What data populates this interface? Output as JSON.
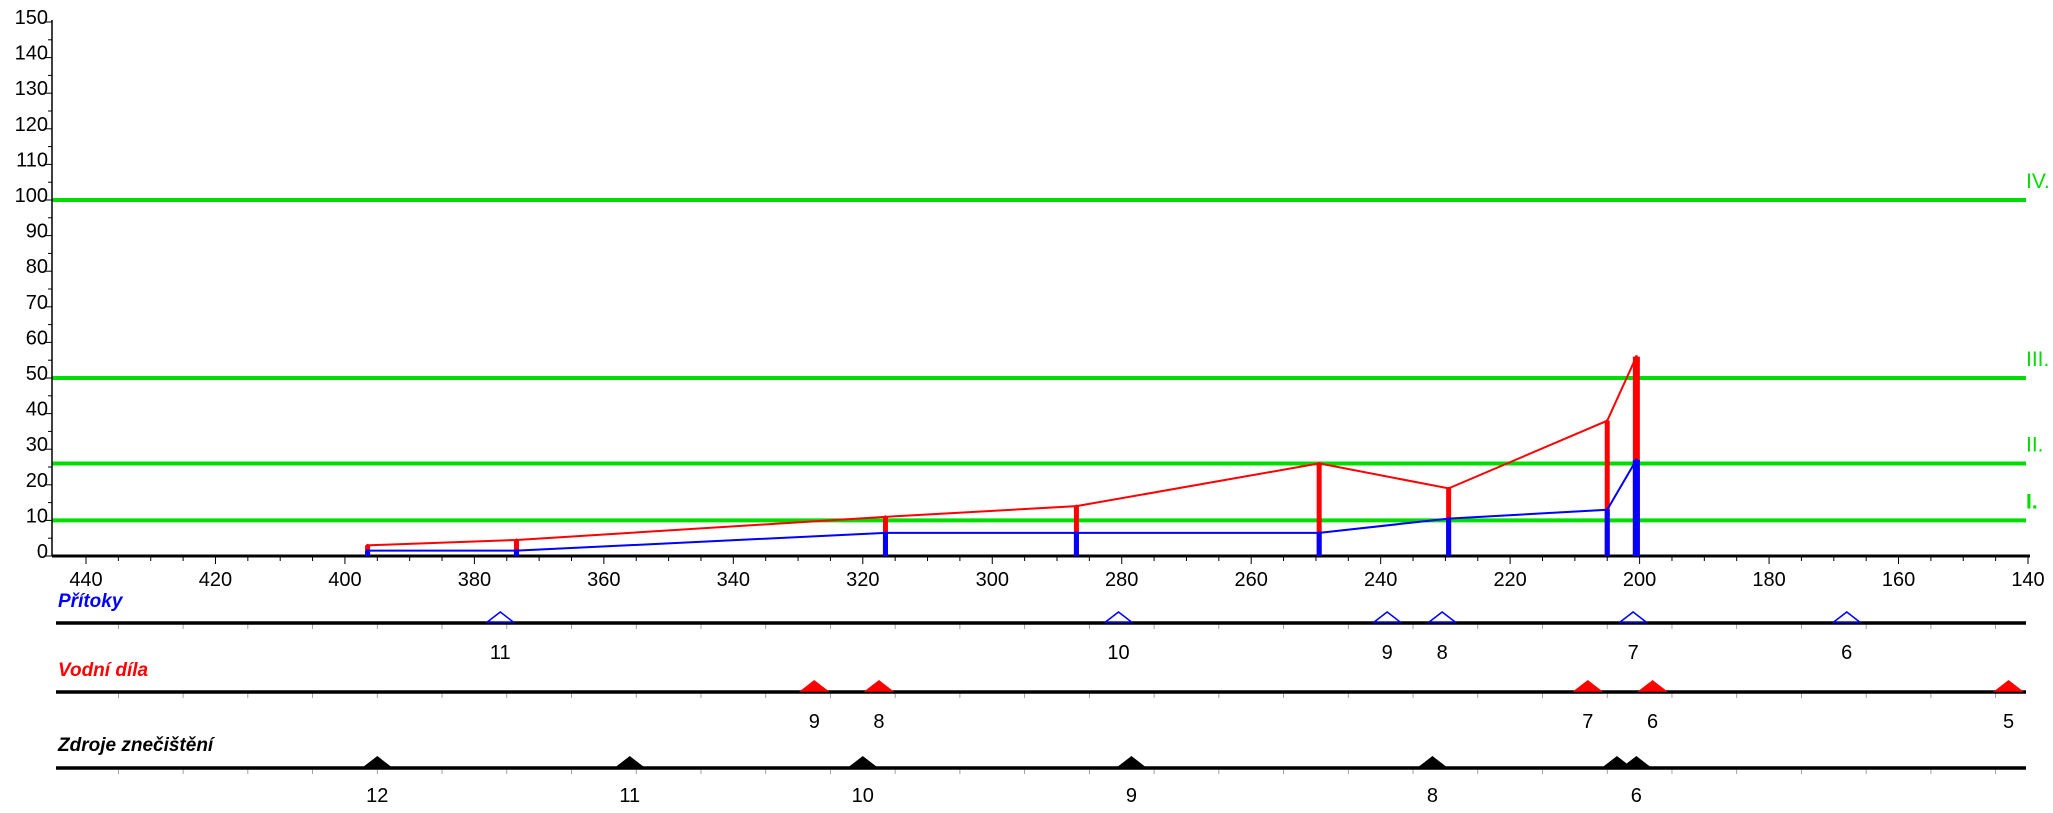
{
  "chart_data": {
    "type": "line",
    "x_axis": {
      "range": [
        440,
        140
      ],
      "reversed": true,
      "ticks": [
        440,
        420,
        400,
        380,
        360,
        340,
        320,
        300,
        280,
        260,
        240,
        220,
        200,
        180,
        160,
        140
      ],
      "tick_labels": [
        "440",
        "420",
        "400",
        "380",
        "360",
        "340",
        "320",
        "300",
        "280",
        "260",
        "240",
        "220",
        "200",
        "180",
        "160",
        "140"
      ]
    },
    "y_axis": {
      "range": [
        0,
        150
      ],
      "ticks": [
        0,
        10,
        20,
        30,
        40,
        50,
        60,
        70,
        80,
        90,
        100,
        110,
        120,
        130,
        140,
        150
      ],
      "tick_labels": [
        "0",
        "10",
        "20",
        "30",
        "40",
        "50",
        "60",
        "70",
        "80",
        "90",
        "100",
        "110",
        "120",
        "130",
        "140",
        "150"
      ]
    },
    "grid": false,
    "class_lines": [
      {
        "label": "I.",
        "y": 10,
        "color": "#00dd00"
      },
      {
        "label": "II.",
        "y": 26,
        "color": "#00dd00"
      },
      {
        "label": "III.",
        "y": 50,
        "color": "#00dd00"
      },
      {
        "label": "IV.",
        "y": 100,
        "color": "#00dd00"
      }
    ],
    "series": [
      {
        "color": "#ff0000",
        "x": [
          396.5,
          373.5,
          316.5,
          287,
          249.5,
          229.5,
          205,
          200.5
        ],
        "y": [
          3,
          4.5,
          11,
          14,
          26,
          19,
          38,
          56
        ]
      },
      {
        "color": "#0000ff",
        "x": [
          396.5,
          373.5,
          316.5,
          287,
          249.5,
          229.5,
          205,
          200.5
        ],
        "y": [
          1.5,
          1.5,
          6.5,
          6.5,
          6.5,
          10.5,
          13,
          27
        ]
      }
    ]
  },
  "tracks": [
    {
      "title": "Přítoky",
      "color": "#0000ff",
      "marker_fill": "#ffffff",
      "markers": [
        {
          "x": 376,
          "label": "11"
        },
        {
          "x": 280.5,
          "label": "10"
        },
        {
          "x": 239,
          "label": "9"
        },
        {
          "x": 230.5,
          "label": "8"
        },
        {
          "x": 201,
          "label": "7"
        },
        {
          "x": 168,
          "label": "6"
        }
      ]
    },
    {
      "title": "Vodní díla",
      "color": "#ff0000",
      "marker_fill": "#ff0000",
      "markers": [
        {
          "x": 327.5,
          "label": "9"
        },
        {
          "x": 317.5,
          "label": "8"
        },
        {
          "x": 208,
          "label": "7"
        },
        {
          "x": 198,
          "label": "6"
        },
        {
          "x": 143,
          "label": "5"
        }
      ]
    },
    {
      "title": "Zdroje znečištění",
      "color": "#000000",
      "marker_fill": "#000000",
      "markers": [
        {
          "x": 395,
          "label": "12"
        },
        {
          "x": 356,
          "label": "11"
        },
        {
          "x": 320,
          "label": "10"
        },
        {
          "x": 278.5,
          "label": "9"
        },
        {
          "x": 232,
          "label": "8"
        },
        {
          "x": 203.5,
          "label": ""
        },
        {
          "x": 200.5,
          "label": "6"
        }
      ]
    }
  ]
}
